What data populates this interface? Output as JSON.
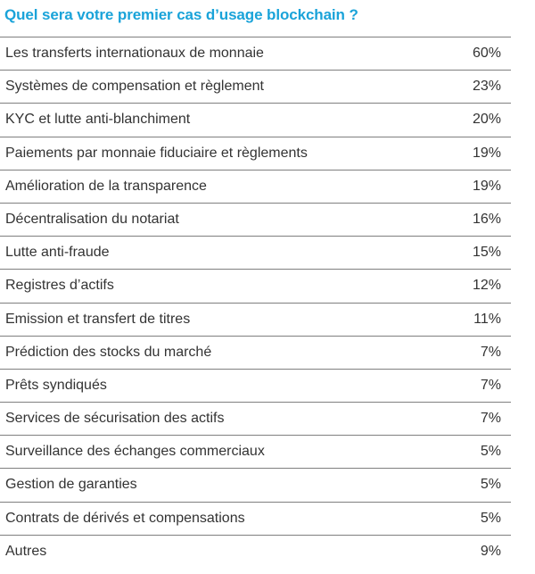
{
  "chart_data": {
    "type": "table",
    "title": "Quel sera votre premier cas d’usage blockchain ?",
    "categories": [
      "Les transferts internationaux de monnaie",
      "Systèmes de compensation et règlement",
      "KYC et lutte anti-blanchiment",
      "Paiements par monnaie fiduciaire et règlements",
      "Amélioration de la transparence",
      "Décentralisation du notariat",
      "Lutte anti-fraude",
      "Registres d’actifs",
      "Emission et transfert de titres",
      "Prédiction des stocks du marché",
      "Prêts syndiqués",
      "Services de sécurisation des actifs",
      "Surveillance des échanges commerciaux",
      "Gestion de garanties",
      "Contrats de dérivés et compensations",
      "Autres"
    ],
    "values": [
      60,
      23,
      20,
      19,
      19,
      16,
      15,
      12,
      11,
      7,
      7,
      7,
      5,
      5,
      5,
      9
    ],
    "value_labels": [
      "60%",
      "23%",
      "20%",
      "19%",
      "19%",
      "16%",
      "15%",
      "12%",
      "11%",
      "7%",
      "7%",
      "7%",
      "5%",
      "5%",
      "5%",
      "9%"
    ],
    "unit": "%"
  },
  "colors": {
    "title": "#1aa3d9",
    "text": "#333333",
    "rule": "#7f7f7f"
  }
}
